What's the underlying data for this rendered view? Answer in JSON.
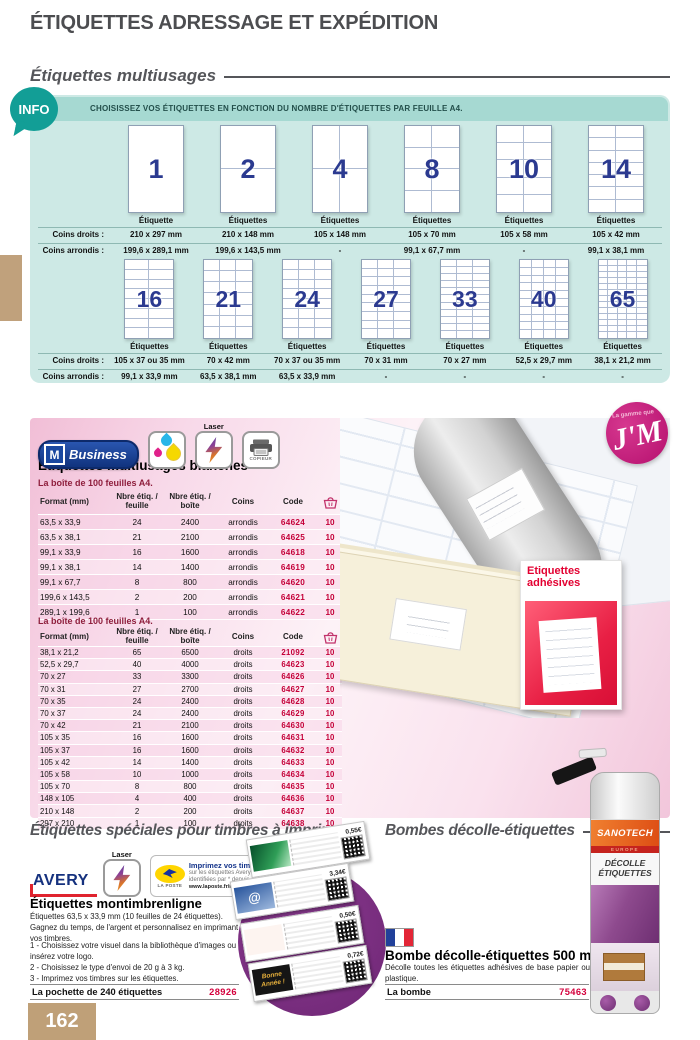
{
  "page": {
    "title": "ÉTIQUETTES ADRESSAGE ET EXPÉDITION",
    "page_number": "162"
  },
  "multiusages": {
    "title": "Étiquettes multiusages",
    "info_badge": "INFO",
    "info_text": "CHOISISSEZ VOS ÉTIQUETTES EN FONCTION DU NOMBRE D'ÉTIQUETTES PAR FEUILLE A4.",
    "row_label_droits": "Coins droits :",
    "row_label_arrondis": "Coins arrondis :",
    "layouts_row1": [
      {
        "count": "1",
        "cols": 1,
        "rows": 1,
        "name": "Étiquette",
        "droits": "210 x 297 mm",
        "arrondis": "199,6 x 289,1 mm"
      },
      {
        "count": "2",
        "cols": 1,
        "rows": 2,
        "name": "Étiquettes",
        "droits": "210 x 148 mm",
        "arrondis": "199,6 x 143,5 mm"
      },
      {
        "count": "4",
        "cols": 2,
        "rows": 2,
        "name": "Étiquettes",
        "droits": "105 x 148 mm",
        "arrondis": "-"
      },
      {
        "count": "8",
        "cols": 2,
        "rows": 4,
        "name": "Étiquettes",
        "droits": "105 x 70 mm",
        "arrondis": "99,1 x 67,7 mm"
      },
      {
        "count": "10",
        "cols": 2,
        "rows": 5,
        "name": "Étiquettes",
        "droits": "105 x 58 mm",
        "arrondis": "-"
      },
      {
        "count": "14",
        "cols": 2,
        "rows": 7,
        "name": "Étiquettes",
        "droits": "105 x 42 mm",
        "arrondis": "99,1 x 38,1 mm"
      }
    ],
    "layouts_row2": [
      {
        "count": "16",
        "cols": 2,
        "rows": 8,
        "name": "Étiquettes",
        "droits": "105 x 37 ou 35 mm",
        "arrondis": "99,1 x 33,9 mm"
      },
      {
        "count": "21",
        "cols": 3,
        "rows": 7,
        "name": "Étiquettes",
        "droits": "70 x 42 mm",
        "arrondis": "63,5 x 38,1 mm"
      },
      {
        "count": "24",
        "cols": 3,
        "rows": 8,
        "name": "Étiquettes",
        "droits": "70 x 37 ou 35 mm",
        "arrondis": "63,5 x 33,9 mm"
      },
      {
        "count": "27",
        "cols": 3,
        "rows": 9,
        "name": "Étiquettes",
        "droits": "70 x 31 mm",
        "arrondis": "-"
      },
      {
        "count": "33",
        "cols": 3,
        "rows": 11,
        "name": "Étiquettes",
        "droits": "70 x 27 mm",
        "arrondis": "-"
      },
      {
        "count": "40",
        "cols": 4,
        "rows": 10,
        "name": "Étiquettes",
        "droits": "52,5 x 29,7 mm",
        "arrondis": "-"
      },
      {
        "count": "65",
        "cols": 5,
        "rows": 13,
        "name": "Étiquettes",
        "droits": "38,1 x 21,2 mm",
        "arrondis": "-"
      }
    ]
  },
  "product_block": {
    "brand_m": "M",
    "brand": "Business",
    "laser_label": "Laser",
    "copier_label": "COPIEUR",
    "heading": "Étiquettes multiusages blanches",
    "box_label": "La boîte de 100 feuilles A4.",
    "table_headers": [
      "Format (mm)",
      "Nbre étiq. / feuille",
      "Nbre étiq. / boîte",
      "Coins",
      "Code"
    ],
    "table1_rows": [
      {
        "format": "63,5 x 33,9",
        "per_sheet": "24",
        "per_box": "2400",
        "coins": "arrondis",
        "code": "64624",
        "qty": "10"
      },
      {
        "format": "63,5 x 38,1",
        "per_sheet": "21",
        "per_box": "2100",
        "coins": "arrondis",
        "code": "64625",
        "qty": "10"
      },
      {
        "format": "99,1 x 33,9",
        "per_sheet": "16",
        "per_box": "1600",
        "coins": "arrondis",
        "code": "64618",
        "qty": "10"
      },
      {
        "format": "99,1 x 38,1",
        "per_sheet": "14",
        "per_box": "1400",
        "coins": "arrondis",
        "code": "64619",
        "qty": "10"
      },
      {
        "format": "99,1 x 67,7",
        "per_sheet": "8",
        "per_box": "800",
        "coins": "arrondis",
        "code": "64620",
        "qty": "10"
      },
      {
        "format": "199,6 x 143,5",
        "per_sheet": "2",
        "per_box": "200",
        "coins": "arrondis",
        "code": "64621",
        "qty": "10"
      },
      {
        "format": "289,1 x 199,6",
        "per_sheet": "1",
        "per_box": "100",
        "coins": "arrondis",
        "code": "64622",
        "qty": "10"
      }
    ],
    "table2_rows": [
      {
        "format": "38,1 x 21,2",
        "per_sheet": "65",
        "per_box": "6500",
        "coins": "droits",
        "code": "21092",
        "qty": "10"
      },
      {
        "format": "52,5 x 29,7",
        "per_sheet": "40",
        "per_box": "4000",
        "coins": "droits",
        "code": "64623",
        "qty": "10"
      },
      {
        "format": "70 x 27",
        "per_sheet": "33",
        "per_box": "3300",
        "coins": "droits",
        "code": "64626",
        "qty": "10"
      },
      {
        "format": "70 x 31",
        "per_sheet": "27",
        "per_box": "2700",
        "coins": "droits",
        "code": "64627",
        "qty": "10"
      },
      {
        "format": "70 x 35",
        "per_sheet": "24",
        "per_box": "2400",
        "coins": "droits",
        "code": "64628",
        "qty": "10"
      },
      {
        "format": "70 x 37",
        "per_sheet": "24",
        "per_box": "2400",
        "coins": "droits",
        "code": "64629",
        "qty": "10"
      },
      {
        "format": "70 x 42",
        "per_sheet": "21",
        "per_box": "2100",
        "coins": "droits",
        "code": "64630",
        "qty": "10"
      },
      {
        "format": "105 x 35",
        "per_sheet": "16",
        "per_box": "1600",
        "coins": "droits",
        "code": "64631",
        "qty": "10"
      },
      {
        "format": "105 x 37",
        "per_sheet": "16",
        "per_box": "1600",
        "coins": "droits",
        "code": "64632",
        "qty": "10"
      },
      {
        "format": "105 x 42",
        "per_sheet": "14",
        "per_box": "1400",
        "coins": "droits",
        "code": "64633",
        "qty": "10"
      },
      {
        "format": "105 x 58",
        "per_sheet": "10",
        "per_box": "1000",
        "coins": "droits",
        "code": "64634",
        "qty": "10"
      },
      {
        "format": "105 x 70",
        "per_sheet": "8",
        "per_box": "800",
        "coins": "droits",
        "code": "64635",
        "qty": "10"
      },
      {
        "format": "148 x 105",
        "per_sheet": "4",
        "per_box": "400",
        "coins": "droits",
        "code": "64636",
        "qty": "10"
      },
      {
        "format": "210 x 148",
        "per_sheet": "2",
        "per_box": "200",
        "coins": "droits",
        "code": "64637",
        "qty": "10"
      },
      {
        "format": "297 x 210",
        "per_sheet": "1",
        "per_box": "100",
        "coins": "droits",
        "code": "64638",
        "qty": "10"
      }
    ],
    "badge_top": "La gamme que",
    "badge_main": "J'M",
    "photo_box_title": "Etiquettes adhésives"
  },
  "stamps_section": {
    "title": "Étiquettes spéciales pour timbres à imprimer",
    "avery": "AVERY",
    "laposte_name": "LA POSTE",
    "poste_bold": "Imprimez vos timbres",
    "poste_line2": "sur les étiquettes Avery",
    "poste_line3": "identifiées par * depuis",
    "poste_url": "www.laposte.fr/montimbrenligne",
    "product_heading": "Étiquettes montimbrenligne",
    "desc1": "Étiquettes 63,5 x 33,9 mm (10 feuilles de 24 étiquettes).",
    "desc2": "Gagnez du temps, de l'argent et personnalisez en imprimant vos timbres.",
    "steps": [
      "1 - Choisissez votre visuel dans la bibliothèque d'images ou insérez votre logo.",
      "2 - Choisissez le type d'envoi de 20 g à 3 kg.",
      "3 - Imprimez vos timbres sur les étiquettes."
    ],
    "buy_label": "La pochette de 240 étiquettes",
    "buy_code": "28926",
    "stamps": [
      {
        "price": "0,55€",
        "variant": "green",
        "text": ""
      },
      {
        "price": "3,34€",
        "variant": "keyboard",
        "text": "@"
      },
      {
        "price": "0,50€",
        "variant": "promo",
        "text": ""
      },
      {
        "price": "0,72€",
        "variant": "newyear",
        "text": "Bonne Année !"
      }
    ]
  },
  "spray_section": {
    "title": "Bombes décolle-étiquettes",
    "product_heading": "Bombe décolle-étiquettes 500 ml",
    "desc": "Décolle toutes les étiquettes adhésives de base papier ou plastique.",
    "buy_label": "La bombe",
    "buy_code": "75463",
    "can_brand": "SANOTECH",
    "can_sub": "EUROPE",
    "can_label1": "DÉCOLLE",
    "can_label2": "ÉTIQUETTES"
  }
}
